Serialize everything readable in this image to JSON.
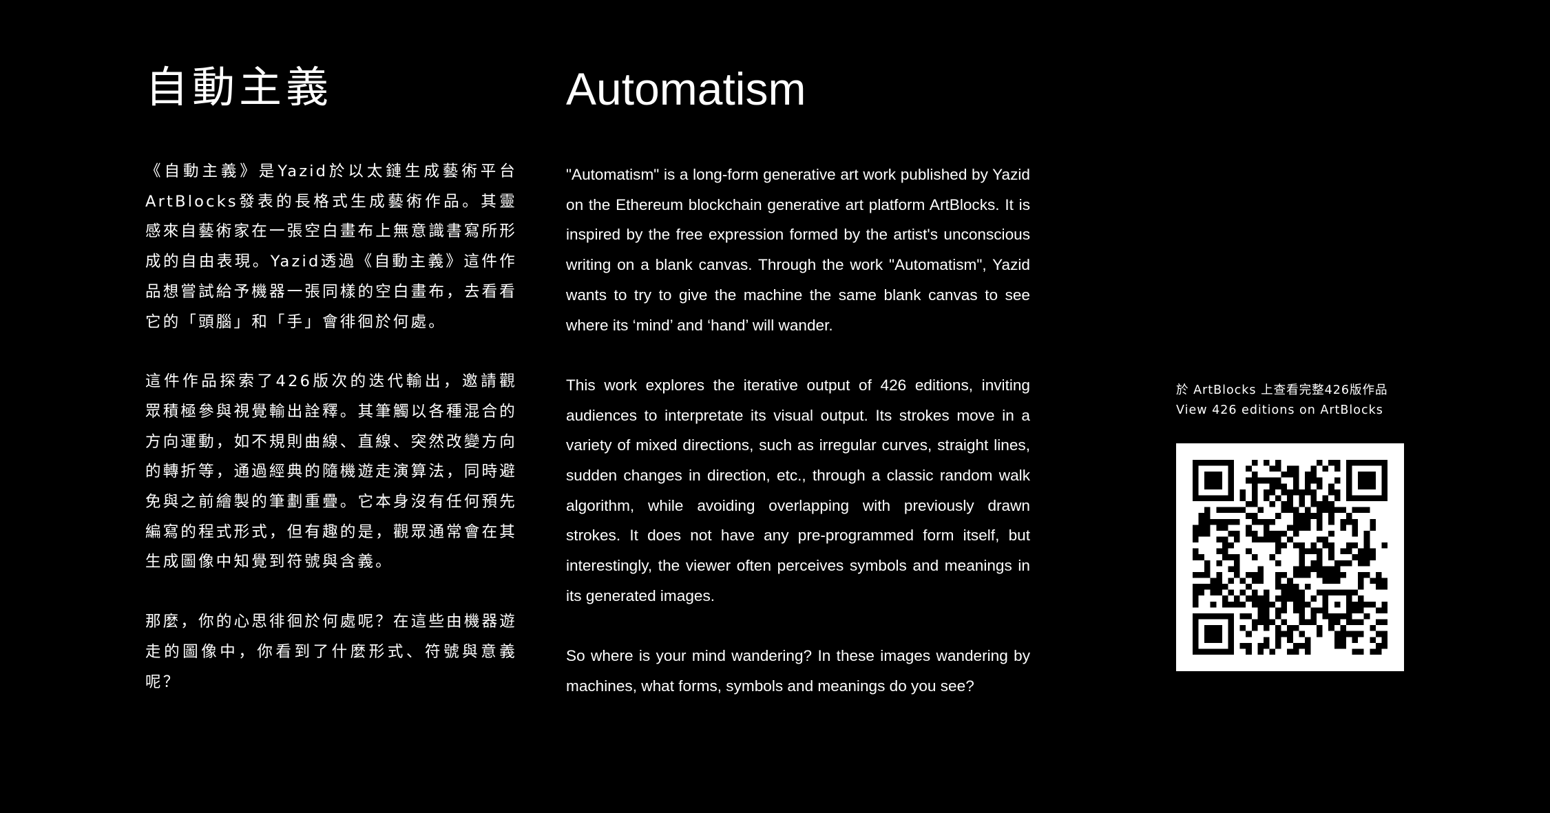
{
  "zh": {
    "title": "自動主義",
    "paragraphs": [
      "《自動主義》是Yazid於以太鏈生成藝術平台ArtBlocks發表的長格式生成藝術作品。其靈感來自藝術家在一張空白畫布上無意識書寫所形成的自由表現。Yazid透過《自動主義》這件作品想嘗試給予機器一張同樣的空白畫布，去看看它的「頭腦」和「手」會徘徊於何處。",
      "這件作品探索了426版次的迭代輸出，邀請觀眾積極參與視覺輸出詮釋。其筆觸以各種混合的方向運動，如不規則曲線、直線、突然改變方向的轉折等，通過經典的隨機遊走演算法，同時避免與之前繪製的筆劃重疊。它本身沒有任何預先編寫的程式形式，但有趣的是，觀眾通常會在其生成圖像中知覺到符號與含義。",
      "那麼，你的心思徘徊於何處呢？在這些由機器遊走的圖像中，你看到了什麼形式、符號與意義呢？"
    ]
  },
  "en": {
    "title": "Automatism",
    "paragraphs": [
      " \"Automatism\" is a long-form generative art work published by Yazid on the Ethereum blockchain generative art platform ArtBlocks. It is inspired by the free expression formed by the artist's unconscious writing on a blank canvas. Through the work \"Automatism\", Yazid wants to try to give the machine the same blank canvas to see where its ‘mind’ and ‘hand’ will wander.",
      "This work explores the iterative output of 426 editions, inviting audiences to interpretate its visual output. Its strokes move in a variety of mixed directions, such as irregular curves, straight lines, sudden changes in direction, etc., through a classic random walk algorithm, while avoiding overlapping with previously drawn strokes. It does not have any pre-programmed form itself, but interestingly, the viewer often perceives symbols and meanings in its generated images.",
      "So where is your mind wandering? In these images wandering by machines, what forms, symbols and meanings do you see?"
    ]
  },
  "qr": {
    "caption_zh": "於 ArtBlocks 上查看完整426版作品",
    "caption_en": "View 426 editions on ArtBlocks",
    "icon": "qr-code-icon"
  },
  "colors": {
    "background": "#000000",
    "text": "#ffffff"
  }
}
